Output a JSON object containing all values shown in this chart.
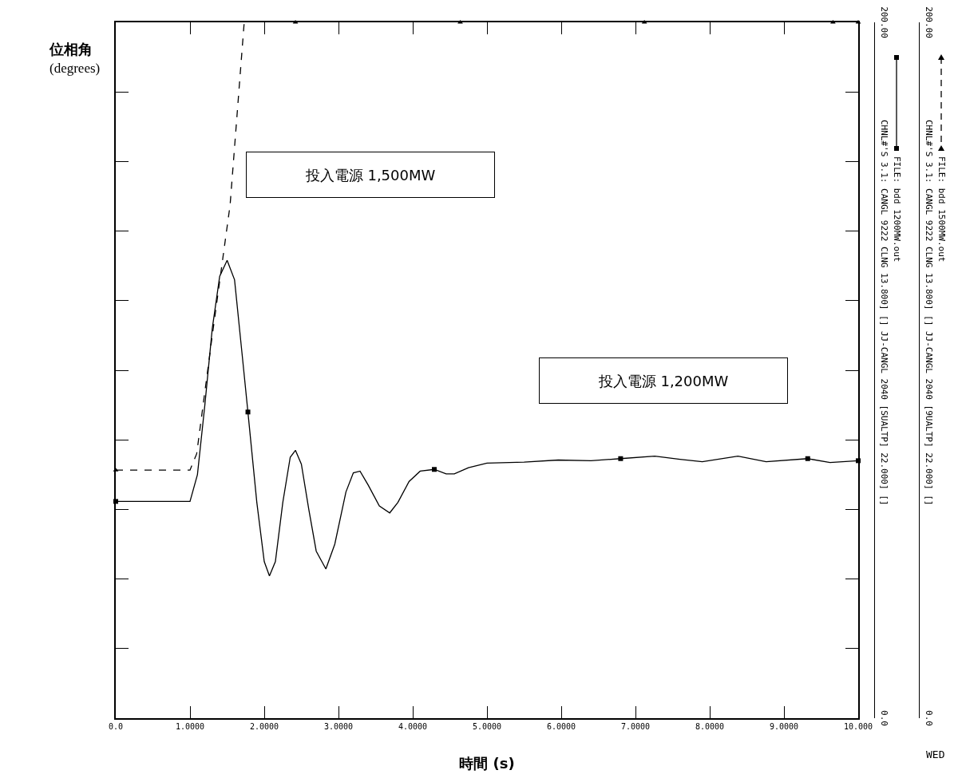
{
  "chart_data": {
    "type": "line",
    "ylabel": "位相角\n(degrees)",
    "xlabel": "時間 (s)",
    "legend": "right",
    "grid": false,
    "xlim": [
      0,
      10
    ],
    "xticks": [
      {
        "value": 0,
        "label": "0.0"
      },
      {
        "value": 1,
        "label": "1.0000"
      },
      {
        "value": 2,
        "label": "2.0000"
      },
      {
        "value": 3,
        "label": "3.0000"
      },
      {
        "value": 4,
        "label": "4.0000"
      },
      {
        "value": 5,
        "label": "5.0000"
      },
      {
        "value": 6,
        "label": "6.0000"
      },
      {
        "value": 7,
        "label": "7.0000"
      },
      {
        "value": 8,
        "label": "8.0000"
      },
      {
        "value": 9,
        "label": "9.0000"
      },
      {
        "value": 10,
        "label": "10.000"
      }
    ],
    "ylim": [
      0,
      200
    ],
    "yticks": [
      {
        "value": 0,
        "label": "0.0"
      },
      {
        "value": 20,
        "label": null
      },
      {
        "value": 40,
        "label": null
      },
      {
        "value": 60,
        "label": null
      },
      {
        "value": 80,
        "label": null
      },
      {
        "value": 100,
        "label": null
      },
      {
        "value": 120,
        "label": null
      },
      {
        "value": 140,
        "label": null
      },
      {
        "value": 160,
        "label": null
      },
      {
        "value": 180,
        "label": null
      },
      {
        "value": 200,
        "label": "200.00"
      }
    ],
    "series": [
      {
        "name": "FILE: bdd 1200MW.out",
        "color": "#000000",
        "line_style": "solid",
        "marker": "none",
        "x": [
          0,
          1.0,
          1.1,
          1.2,
          1.3,
          1.4,
          1.5,
          1.6,
          1.7,
          1.78,
          1.9,
          2.0,
          2.07,
          2.15,
          2.25,
          2.35,
          2.42,
          2.5,
          2.6,
          2.7,
          2.83,
          2.95,
          3.1,
          3.2,
          3.29,
          3.4,
          3.55,
          3.69,
          3.8,
          3.95,
          4.1,
          4.29,
          4.45,
          4.56,
          4.75,
          5.0,
          5.5,
          5.96,
          6.4,
          6.8,
          7.26,
          7.6,
          7.9,
          8.38,
          8.76,
          9.32,
          9.62,
          10
        ],
        "values": [
          62.3,
          62.3,
          70,
          90,
          112,
          127,
          131.6,
          126,
          105,
          88,
          62,
          45,
          40.9,
          45,
          62,
          75,
          77,
          73,
          60,
          48,
          42.9,
          50,
          65,
          70.5,
          71,
          67,
          61,
          59,
          62,
          68,
          71,
          71.5,
          70.2,
          70.2,
          72,
          73.3,
          73.6,
          74.2,
          74,
          74.6,
          75.3,
          74.4,
          73.7,
          75.3,
          73.7,
          74.6,
          73.5,
          74
        ]
      },
      {
        "type": "scatter",
        "color": "#000000",
        "marker": "square",
        "x": [
          0,
          1.78,
          4.29,
          6.8,
          9.32,
          10
        ],
        "values": [
          62.3,
          88,
          71.5,
          74.6,
          74.6,
          74
        ]
      },
      {
        "name": "FILE: bdd 1500MW.out",
        "color": "#000000",
        "line_style": "dashed",
        "marker": "none",
        "x": [
          0,
          1.0,
          1.09,
          1.3,
          1.54,
          1.73
        ],
        "values": [
          71.3,
          71.3,
          76,
          110,
          147.5,
          200
        ]
      },
      {
        "type": "scatter",
        "color": "#000000",
        "marker": "triangle",
        "x": [
          0,
          2.42,
          4.64,
          7.12,
          9.66,
          10
        ],
        "values": [
          71.3,
          200,
          200,
          200,
          200,
          200
        ]
      }
    ],
    "annotations": [
      "投入電源 1,500MW",
      "投入電源 1,200MW",
      "CHNL#'S 3.1: CANGL 9222 CLNG 13.800] [] JJ-CANGL 2040 [SUALTP] 22.000] []",
      "CHNL#'S 3.1: CANGL 9222 CLNG 13.800] [] JJ-CANGL 2040 [9UALTP] 22.000] []",
      "WED"
    ]
  }
}
